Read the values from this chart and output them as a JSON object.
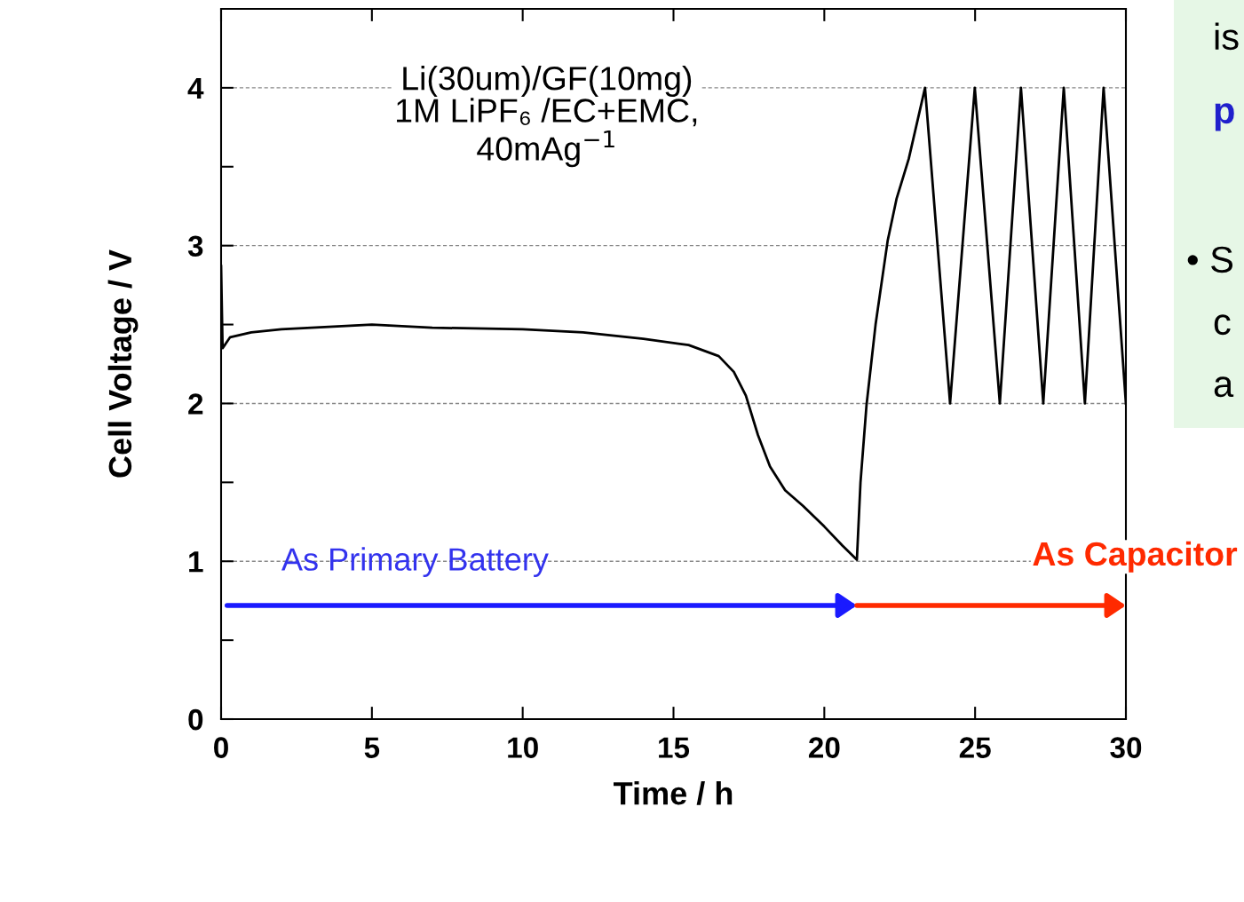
{
  "chart_data": {
    "type": "line",
    "xlabel": "Time / h",
    "ylabel": "Cell Voltage / V",
    "xlim": [
      0,
      30
    ],
    "ylim": [
      0,
      4.5
    ],
    "xticks": [
      0,
      5,
      10,
      15,
      20,
      25,
      30
    ],
    "yticks": [
      0,
      {
        "value": 0.5,
        "label": null
      },
      1,
      {
        "value": 1.5,
        "label": null
      },
      2,
      {
        "value": 2.5,
        "label": null
      },
      3,
      {
        "value": 3.5,
        "label": null
      },
      4
    ],
    "grid": "y",
    "line_style": "solid",
    "marker": "none",
    "series": [
      {
        "color": "#000000",
        "x": [
          0,
          0.05,
          0.3,
          1,
          2,
          3,
          5,
          7,
          10,
          12,
          14,
          15.5,
          16.5,
          17,
          17.4,
          17.8,
          18.2,
          18.7,
          19.3,
          20,
          20.6,
          21.08,
          21.2,
          21.4,
          21.7,
          22.1,
          22.4,
          22.8,
          23.34,
          24.17,
          24.99,
          25.82,
          26.52,
          27.26,
          27.94,
          28.64,
          29.26,
          30
        ],
        "values": [
          2.87,
          2.35,
          2.42,
          2.45,
          2.47,
          2.48,
          2.5,
          2.48,
          2.47,
          2.45,
          2.41,
          2.37,
          2.3,
          2.2,
          2.05,
          1.8,
          1.6,
          1.45,
          1.35,
          1.22,
          1.1,
          1.01,
          1.5,
          1.99,
          2.5,
          3.03,
          3.3,
          3.55,
          4.0,
          2.0,
          4.0,
          2.0,
          4.0,
          2.0,
          4.0,
          2.0,
          4.0,
          2.0
        ]
      }
    ],
    "annotations": [
      "Li(30um)/GF(10mg)\n1M LiPF₆ /EC+EMC,\n40mAg$^{−1}$",
      "As Primary Battery",
      "As Capacitor",
      "is",
      "p",
      "• S",
      "c",
      "a"
    ]
  }
}
